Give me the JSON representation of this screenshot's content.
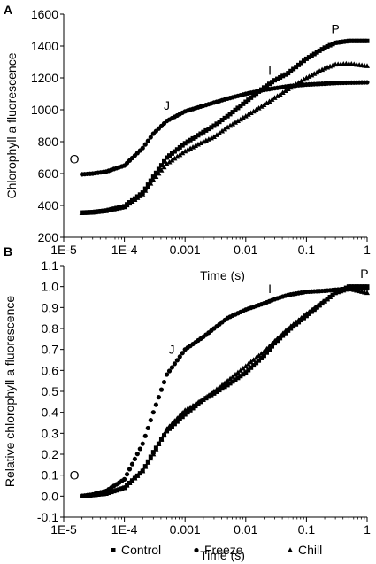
{
  "chart_data": [
    {
      "panel_label": "A",
      "type": "scatter",
      "xscale": "log",
      "xlim": [
        1e-05,
        1
      ],
      "ylim": [
        200,
        1600
      ],
      "xticks": [
        "1E-5",
        "1E-4",
        "0.001",
        "0.01",
        "0.1",
        "1"
      ],
      "yticks": [
        "200",
        "400",
        "600",
        "800",
        "1000",
        "1200",
        "1400",
        "1600"
      ],
      "xlabel": "Time (s)",
      "ylabel": "Chlorophyll a fluorescence",
      "annotations": [
        {
          "text": "O",
          "x": 1.5e-05,
          "y": 665
        },
        {
          "text": "J",
          "x": 0.0005,
          "y": 1000
        },
        {
          "text": "I",
          "x": 0.025,
          "y": 1220
        },
        {
          "text": "P",
          "x": 0.3,
          "y": 1480
        }
      ],
      "series": [
        {
          "name": "Control",
          "marker": "square",
          "x": [
            2e-05,
            3e-05,
            5e-05,
            0.0001,
            0.0002,
            0.0003,
            0.0005,
            0.001,
            0.002,
            0.003,
            0.005,
            0.01,
            0.02,
            0.03,
            0.05,
            0.1,
            0.2,
            0.3,
            0.5,
            1
          ],
          "y": [
            355,
            358,
            368,
            395,
            480,
            580,
            700,
            790,
            860,
            900,
            960,
            1050,
            1140,
            1185,
            1230,
            1320,
            1390,
            1420,
            1432,
            1432
          ]
        },
        {
          "name": "Freeze",
          "marker": "circle",
          "x": [
            2e-05,
            3e-05,
            5e-05,
            0.0001,
            0.0002,
            0.0003,
            0.0005,
            0.001,
            0.002,
            0.003,
            0.005,
            0.01,
            0.02,
            0.03,
            0.05,
            0.1,
            0.2,
            0.3,
            0.5,
            1
          ],
          "y": [
            595,
            600,
            612,
            650,
            760,
            850,
            930,
            990,
            1025,
            1045,
            1070,
            1100,
            1125,
            1135,
            1148,
            1158,
            1164,
            1168,
            1170,
            1172
          ]
        },
        {
          "name": "Chill",
          "marker": "triangle",
          "x": [
            2e-05,
            3e-05,
            5e-05,
            0.0001,
            0.0002,
            0.0003,
            0.0005,
            0.001,
            0.002,
            0.003,
            0.005,
            0.01,
            0.02,
            0.03,
            0.05,
            0.1,
            0.2,
            0.3,
            0.5,
            1
          ],
          "y": [
            352,
            355,
            365,
            390,
            470,
            560,
            660,
            740,
            800,
            830,
            890,
            960,
            1030,
            1075,
            1130,
            1200,
            1260,
            1285,
            1290,
            1275
          ]
        }
      ]
    },
    {
      "panel_label": "B",
      "type": "scatter",
      "xscale": "log",
      "xlim": [
        1e-05,
        1
      ],
      "ylim": [
        -0.1,
        1.1
      ],
      "xticks": [
        "1E-5",
        "1E-4",
        "0.001",
        "0.01",
        "0.1",
        "1"
      ],
      "yticks": [
        "-0.1",
        "0.0",
        "0.1",
        "0.2",
        "0.3",
        "0.4",
        "0.5",
        "0.6",
        "0.7",
        "0.8",
        "0.9",
        "1.0",
        "1.1"
      ],
      "xlabel": "Time (s)",
      "ylabel": "Relative chlorophyll a fluorescence",
      "annotations": [
        {
          "text": "O",
          "x": 1.5e-05,
          "y": 0.08
        },
        {
          "text": "J",
          "x": 0.0006,
          "y": 0.68
        },
        {
          "text": "I",
          "x": 0.025,
          "y": 0.97
        },
        {
          "text": "P",
          "x": 0.9,
          "y": 1.04
        }
      ],
      "series": [
        {
          "name": "Control",
          "marker": "square",
          "x": [
            2e-05,
            3e-05,
            5e-05,
            0.0001,
            0.0002,
            0.0003,
            0.0005,
            0.001,
            0.002,
            0.003,
            0.005,
            0.01,
            0.02,
            0.03,
            0.05,
            0.1,
            0.2,
            0.3,
            0.5,
            1
          ],
          "y": [
            0.0,
            0.005,
            0.012,
            0.04,
            0.12,
            0.21,
            0.31,
            0.39,
            0.46,
            0.49,
            0.53,
            0.59,
            0.67,
            0.73,
            0.79,
            0.86,
            0.93,
            0.97,
            1.0,
            1.0
          ]
        },
        {
          "name": "Freeze",
          "marker": "circle",
          "x": [
            2e-05,
            3e-05,
            5e-05,
            0.0001,
            0.0002,
            0.0003,
            0.0005,
            0.001,
            0.002,
            0.003,
            0.005,
            0.01,
            0.02,
            0.03,
            0.05,
            0.1,
            0.2,
            0.3,
            0.5,
            1
          ],
          "y": [
            0.0,
            0.008,
            0.025,
            0.08,
            0.25,
            0.4,
            0.58,
            0.7,
            0.76,
            0.8,
            0.85,
            0.89,
            0.92,
            0.94,
            0.96,
            0.975,
            0.98,
            0.985,
            0.99,
            0.99
          ]
        },
        {
          "name": "Chill",
          "marker": "triangle",
          "x": [
            2e-05,
            3e-05,
            5e-05,
            0.0001,
            0.0002,
            0.0003,
            0.0005,
            0.001,
            0.002,
            0.003,
            0.005,
            0.01,
            0.02,
            0.03,
            0.05,
            0.1,
            0.2,
            0.3,
            0.5,
            1
          ],
          "y": [
            0.0,
            0.005,
            0.012,
            0.04,
            0.12,
            0.2,
            0.32,
            0.41,
            0.46,
            0.5,
            0.55,
            0.62,
            0.69,
            0.74,
            0.8,
            0.87,
            0.93,
            0.97,
            0.99,
            0.97
          ]
        }
      ]
    }
  ],
  "legend": {
    "placement": "bottom-center",
    "items": [
      {
        "label": "Control",
        "marker": "square"
      },
      {
        "label": "Freeze",
        "marker": "circle"
      },
      {
        "label": "Chill",
        "marker": "triangle"
      }
    ]
  },
  "colors": {
    "marker": "#000000",
    "axis": "#000000",
    "background": "#ffffff"
  }
}
